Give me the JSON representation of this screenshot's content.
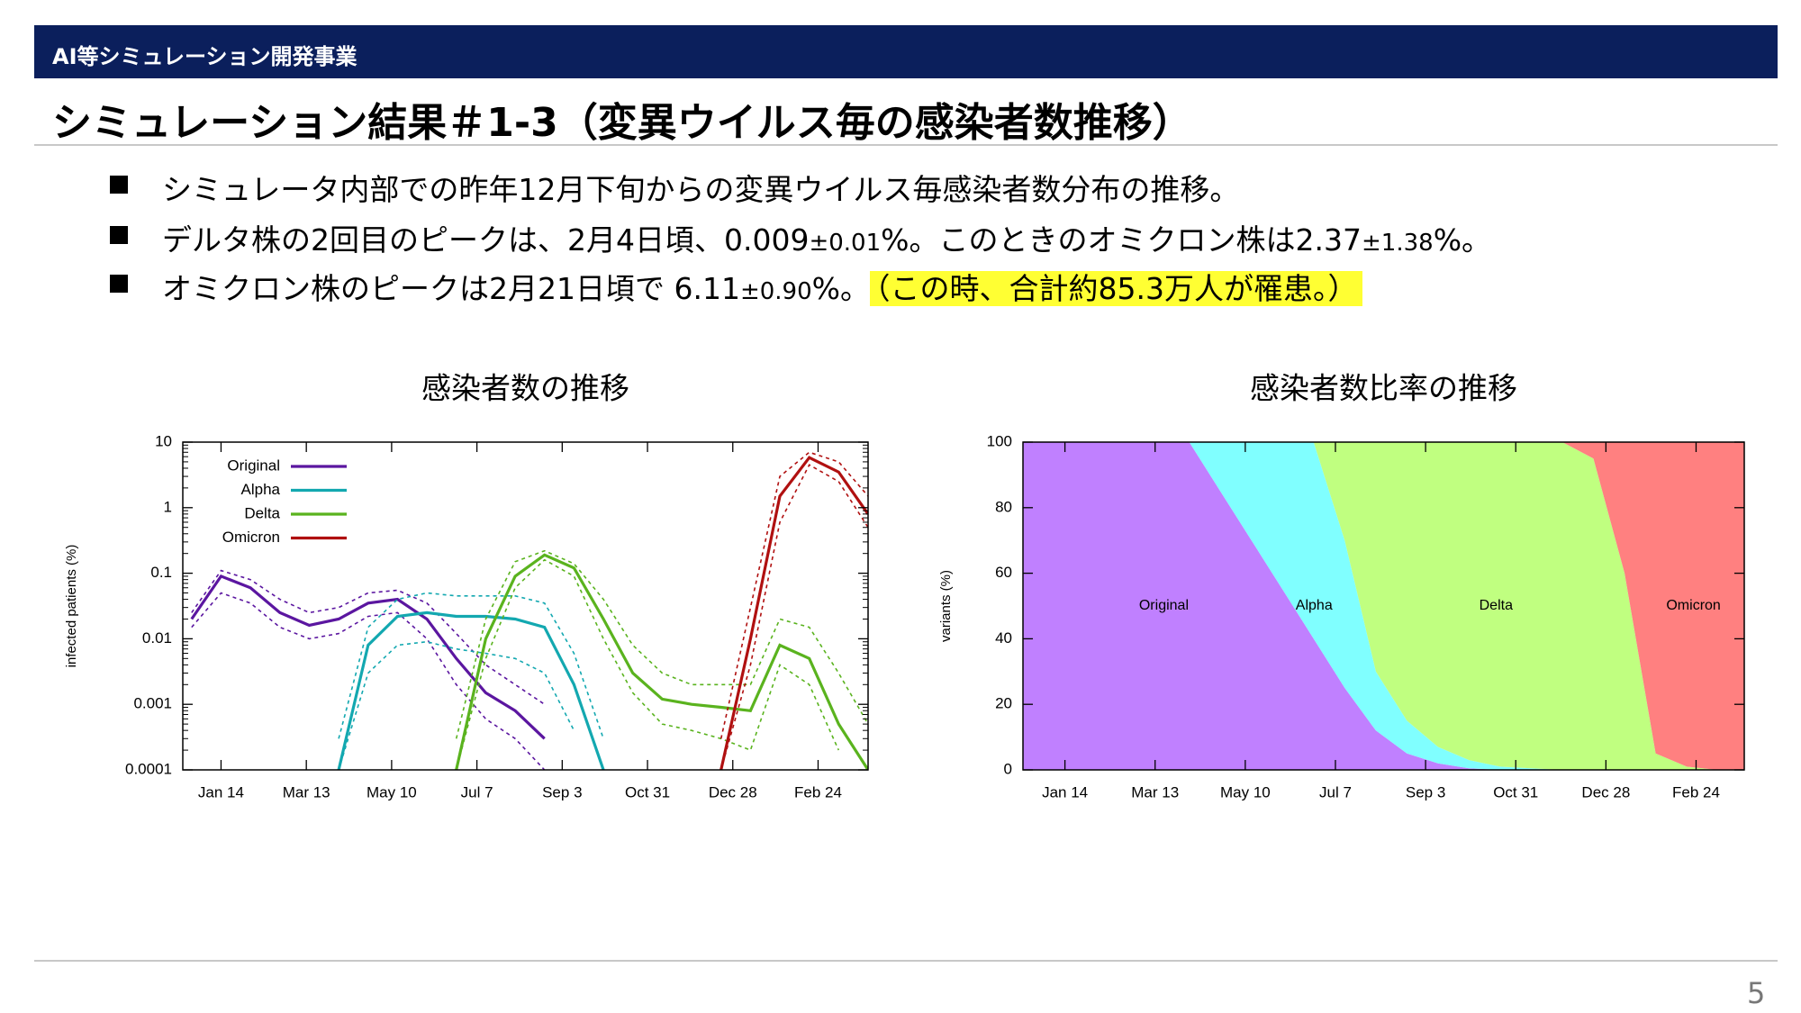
{
  "header": {
    "section": "AI等シミュレーション開発事業",
    "title": "シミュレーション結果＃1-3（変異ウイルス毎の感染者数推移）"
  },
  "bullets": [
    [
      "シミュレータ内部での昨年12月下旬からの変異ウイルス毎感染者数分布の推移。"
    ],
    [
      "デルタ株の2回目のピークは、2月4日頃、0.009",
      "±0.01",
      "%。このときのオミクロン株は2.37",
      "±1.38",
      "%。"
    ],
    [
      "オミクロン株のピークは2月21日頃で 6.11",
      "±0.90",
      "%。",
      "（この時、合計約85.3万人が罹患。）"
    ]
  ],
  "page_number": "5",
  "chart_data": [
    {
      "type": "line",
      "title": "感染者数の推移",
      "ylabel": "infected patients (%)",
      "log_scale": true,
      "legend": "upper left",
      "x": [
        -20,
        0,
        20,
        40,
        60,
        80,
        100,
        120,
        140,
        160,
        180,
        200,
        220,
        240,
        260,
        280,
        300,
        320,
        340,
        360,
        380,
        400,
        420,
        440
      ],
      "xlim": [
        -26,
        440
      ],
      "xticks": [
        {
          "value": 0,
          "label": "Jan 14"
        },
        {
          "value": 58,
          "label": "Mar 13"
        },
        {
          "value": 116,
          "label": "May 10"
        },
        {
          "value": 174,
          "label": "Jul 7"
        },
        {
          "value": 232,
          "label": "Sep 3"
        },
        {
          "value": 290,
          "label": "Oct 31"
        },
        {
          "value": 348,
          "label": "Dec 28"
        },
        {
          "value": 406,
          "label": "Feb 24"
        }
      ],
      "ylim": [
        0.0001,
        10
      ],
      "yticks": [
        10,
        1,
        0.1,
        0.01,
        0.001,
        0.0001
      ],
      "series": [
        {
          "name": "Original",
          "color": "#5b16a0",
          "values": [
            0.02,
            0.09,
            0.06,
            0.025,
            0.016,
            0.02,
            0.035,
            0.04,
            0.02,
            0.005,
            0.0015,
            0.0008,
            0.0003,
            null,
            null,
            null,
            null,
            null,
            null,
            null,
            null,
            null,
            null,
            null
          ],
          "upper": [
            0.025,
            0.11,
            0.08,
            0.04,
            0.025,
            0.03,
            0.05,
            0.055,
            0.035,
            0.012,
            0.004,
            0.002,
            0.001,
            null,
            null,
            null,
            null,
            null,
            null,
            null,
            null,
            null,
            null,
            null
          ],
          "lower": [
            0.015,
            0.05,
            0.035,
            0.015,
            0.01,
            0.012,
            0.022,
            0.025,
            0.01,
            0.002,
            0.0006,
            0.0003,
            0.0001,
            null,
            null,
            null,
            null,
            null,
            null,
            null,
            null,
            null,
            null,
            null
          ]
        },
        {
          "name": "Alpha",
          "color": "#13a8b0",
          "values": [
            null,
            null,
            null,
            null,
            null,
            0.0001,
            0.008,
            0.022,
            0.025,
            0.022,
            0.022,
            0.02,
            0.015,
            0.002,
            0.0001,
            null,
            null,
            null,
            null,
            null,
            null,
            null,
            null,
            null
          ],
          "upper": [
            null,
            null,
            null,
            null,
            null,
            0.0003,
            0.015,
            0.04,
            0.05,
            0.045,
            0.045,
            0.045,
            0.035,
            0.006,
            0.0003,
            null,
            null,
            null,
            null,
            null,
            null,
            null,
            null,
            null
          ],
          "lower": [
            null,
            null,
            null,
            null,
            null,
            0.0001,
            0.003,
            0.008,
            0.009,
            0.007,
            0.006,
            0.005,
            0.003,
            0.0004,
            null,
            null,
            null,
            null,
            null,
            null,
            null,
            null,
            null,
            null
          ]
        },
        {
          "name": "Delta",
          "color": "#5ab31e",
          "values": [
            null,
            null,
            null,
            null,
            null,
            null,
            null,
            null,
            null,
            0.0001,
            0.01,
            0.09,
            0.19,
            0.12,
            0.02,
            0.003,
            0.0012,
            0.001,
            0.0009,
            0.0008,
            0.008,
            0.005,
            0.0005,
            0.0001
          ],
          "upper": [
            null,
            null,
            null,
            null,
            null,
            null,
            null,
            null,
            null,
            0.0003,
            0.02,
            0.15,
            0.22,
            0.14,
            0.04,
            0.008,
            0.003,
            0.002,
            0.002,
            0.002,
            0.02,
            0.015,
            0.003,
            0.0005
          ],
          "lower": [
            null,
            null,
            null,
            null,
            null,
            null,
            null,
            null,
            null,
            0.0001,
            0.005,
            0.06,
            0.16,
            0.09,
            0.01,
            0.0015,
            0.0005,
            0.0004,
            0.0003,
            0.0002,
            0.004,
            0.002,
            0.0002,
            null
          ]
        },
        {
          "name": "Omicron",
          "color": "#b01010",
          "values": [
            null,
            null,
            null,
            null,
            null,
            null,
            null,
            null,
            null,
            null,
            null,
            null,
            null,
            null,
            null,
            null,
            null,
            null,
            0.0001,
            0.01,
            1.5,
            5.8,
            3.5,
            0.8
          ],
          "upper": [
            null,
            null,
            null,
            null,
            null,
            null,
            null,
            null,
            null,
            null,
            null,
            null,
            null,
            null,
            null,
            null,
            null,
            null,
            0.0003,
            0.03,
            3,
            7,
            5,
            1.5
          ],
          "lower": [
            null,
            null,
            null,
            null,
            null,
            null,
            null,
            null,
            null,
            null,
            null,
            null,
            null,
            null,
            null,
            null,
            null,
            null,
            0.0001,
            0.004,
            0.6,
            4.5,
            2.5,
            0.5
          ]
        }
      ]
    },
    {
      "type": "area",
      "stacked": true,
      "title": "感染者数比率の推移",
      "ylabel": "variants (%)",
      "x": [
        -27,
        0,
        20,
        40,
        60,
        80,
        100,
        120,
        140,
        160,
        180,
        200,
        220,
        240,
        260,
        280,
        300,
        320,
        340,
        360,
        380,
        400,
        420,
        437
      ],
      "xlim": [
        -27,
        437
      ],
      "xticks": [
        {
          "value": 0,
          "label": "Jan 14"
        },
        {
          "value": 58,
          "label": "Mar 13"
        },
        {
          "value": 116,
          "label": "May 10"
        },
        {
          "value": 174,
          "label": "Jul 7"
        },
        {
          "value": 232,
          "label": "Sep 3"
        },
        {
          "value": 290,
          "label": "Oct 31"
        },
        {
          "value": 348,
          "label": "Dec 28"
        },
        {
          "value": 406,
          "label": "Feb 24"
        }
      ],
      "ylim": [
        0,
        100
      ],
      "yticks": [
        0,
        20,
        40,
        60,
        80,
        100
      ],
      "series": [
        {
          "name": "Original",
          "color": "#c080ff",
          "values": [
            100,
            100,
            100,
            100,
            100,
            100,
            85,
            70,
            55,
            40,
            25,
            12,
            5,
            2,
            0.5,
            0,
            0,
            0,
            0,
            0,
            0,
            0,
            0,
            0
          ]
        },
        {
          "name": "Alpha",
          "color": "#80ffff",
          "values": [
            0,
            0,
            0,
            0,
            0,
            0,
            15,
            30,
            45,
            60,
            45,
            18,
            10,
            5,
            2.5,
            1,
            0.5,
            0,
            0,
            0,
            0,
            0,
            0,
            0
          ]
        },
        {
          "name": "Delta",
          "color": "#c0ff80",
          "values": [
            0,
            0,
            0,
            0,
            0,
            0,
            0,
            0,
            0,
            0,
            30,
            70,
            85,
            93,
            97,
            99,
            99.5,
            100,
            95,
            60,
            5,
            1,
            0,
            0
          ]
        },
        {
          "name": "Omicron",
          "color": "#ff8080",
          "values": [
            0,
            0,
            0,
            0,
            0,
            0,
            0,
            0,
            0,
            0,
            0,
            0,
            0,
            0,
            0,
            0,
            0,
            0,
            5,
            40,
            95,
            99,
            100,
            100
          ]
        }
      ]
    }
  ]
}
